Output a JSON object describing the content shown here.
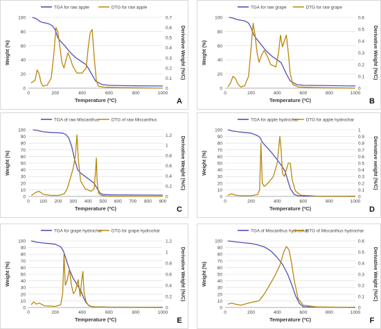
{
  "colors": {
    "tga": "#4f4fb5",
    "dtg": "#b8860b",
    "grid": "#d9d9d9",
    "text": "#444444"
  },
  "chart_data": [
    {
      "id": "A",
      "type": "line",
      "panel_label": "A",
      "xlabel": "Temperature (ºC)",
      "ylabel": "Weight (%)",
      "y2label": "Derivative Weight (%/C)",
      "xlim": [
        0,
        1000
      ],
      "xticks": [
        0,
        200,
        400,
        600,
        800,
        1000
      ],
      "ylim": [
        0,
        100
      ],
      "yticks": [
        0,
        20,
        40,
        60,
        80,
        100
      ],
      "y2lim": [
        0,
        0.7
      ],
      "y2ticks": [
        "0",
        "0.1",
        "0.2",
        "0.3",
        "0.4",
        "0.5",
        "0.6",
        "0.7"
      ],
      "series": [
        {
          "name": "TGA for raw apple",
          "axis": "left",
          "kind": "tga",
          "x": [
            30,
            60,
            80,
            100,
            130,
            150,
            180,
            200,
            220,
            240,
            270,
            300,
            330,
            360,
            400,
            430,
            450,
            470,
            500,
            550,
            600,
            700,
            800,
            1000
          ],
          "y": [
            100,
            98,
            95,
            93,
            92,
            91,
            88,
            82,
            71,
            66,
            60,
            53,
            47,
            42,
            37,
            33,
            27,
            20,
            10,
            5,
            4,
            3.5,
            3.2,
            3
          ]
        },
        {
          "name": "DTG for raw apple",
          "axis": "right",
          "kind": "dtg",
          "x": [
            20,
            50,
            65,
            80,
            95,
            110,
            140,
            170,
            190,
            205,
            220,
            235,
            250,
            265,
            280,
            295,
            310,
            330,
            360,
            400,
            430,
            445,
            460,
            475,
            490,
            505,
            520,
            560,
            700,
            1000
          ],
          "y": [
            0.05,
            0.08,
            0.18,
            0.14,
            0.05,
            0.02,
            0.03,
            0.1,
            0.35,
            0.6,
            0.55,
            0.4,
            0.25,
            0.2,
            0.28,
            0.35,
            0.3,
            0.22,
            0.15,
            0.15,
            0.2,
            0.4,
            0.55,
            0.58,
            0.3,
            0.08,
            0.02,
            0.01,
            0.005,
            0
          ]
        }
      ]
    },
    {
      "id": "B",
      "type": "line",
      "panel_label": "B",
      "xlabel": "Temperature (ºC)",
      "ylabel": "Weight (%)",
      "y2label": "Derivative Weight (%/C)",
      "xlim": [
        0,
        1000
      ],
      "xticks": [
        0,
        200,
        400,
        600,
        800,
        1000
      ],
      "ylim": [
        0,
        100
      ],
      "yticks": [
        0,
        20,
        40,
        60,
        80,
        100
      ],
      "y2lim": [
        0,
        0.6
      ],
      "y2ticks": [
        "0",
        "0.1",
        "0.2",
        "0.3",
        "0.4",
        "0.5",
        "0.6"
      ],
      "series": [
        {
          "name": "TGA for raw grape",
          "axis": "left",
          "kind": "tga",
          "x": [
            30,
            60,
            90,
            120,
            150,
            180,
            200,
            220,
            240,
            270,
            300,
            330,
            360,
            400,
            430,
            450,
            470,
            500,
            550,
            600,
            800,
            1000
          ],
          "y": [
            100,
            99,
            97,
            96,
            95,
            92,
            85,
            75,
            70,
            63,
            56,
            50,
            45,
            40,
            36,
            28,
            20,
            10,
            5,
            4,
            3.5,
            3
          ]
        },
        {
          "name": "DTG for raw grape",
          "axis": "right",
          "kind": "dtg",
          "x": [
            20,
            40,
            60,
            80,
            100,
            120,
            150,
            180,
            200,
            215,
            230,
            245,
            260,
            280,
            300,
            320,
            350,
            390,
            410,
            425,
            440,
            455,
            470,
            485,
            500,
            520,
            560,
            700,
            1000
          ],
          "y": [
            0.01,
            0.04,
            0.1,
            0.08,
            0.03,
            0.01,
            0.02,
            0.1,
            0.35,
            0.55,
            0.45,
            0.3,
            0.22,
            0.28,
            0.32,
            0.28,
            0.2,
            0.18,
            0.3,
            0.45,
            0.35,
            0.4,
            0.45,
            0.3,
            0.12,
            0.03,
            0.01,
            0.005,
            0
          ]
        }
      ]
    },
    {
      "id": "C",
      "type": "line",
      "panel_label": "C",
      "xlabel": "Temperature (ºC)",
      "ylabel": "Weight (%)",
      "y2label": "Derivative Weight (%/C)",
      "xlim": [
        0,
        900
      ],
      "xticks": [
        0,
        100,
        200,
        300,
        400,
        500,
        600,
        700,
        800,
        900
      ],
      "ylim": [
        0,
        100
      ],
      "yticks": [
        0,
        10,
        20,
        30,
        40,
        50,
        60,
        70,
        80,
        90,
        100
      ],
      "y2lim": [
        0,
        1.3
      ],
      "y2ticks": [
        "0",
        "0.2",
        "0.4",
        "0.6",
        "0.8",
        "1",
        "1.2"
      ],
      "series": [
        {
          "name": "TGA of raw Miscanthus",
          "axis": "left",
          "kind": "tga",
          "x": [
            30,
            60,
            100,
            150,
            200,
            230,
            250,
            270,
            290,
            310,
            330,
            350,
            380,
            410,
            440,
            460,
            480,
            500,
            550,
            700,
            900
          ],
          "y": [
            100,
            99,
            97,
            96,
            95.5,
            95,
            93,
            88,
            75,
            55,
            40,
            35,
            30,
            25,
            20,
            12,
            5,
            3,
            2.5,
            2.2,
            2
          ]
        },
        {
          "name": "DTG of raw Miscanthus",
          "axis": "right",
          "kind": "dtg",
          "x": [
            20,
            50,
            70,
            100,
            150,
            200,
            240,
            260,
            280,
            300,
            315,
            325,
            335,
            350,
            380,
            420,
            440,
            450,
            455,
            460,
            470,
            490,
            520,
            600,
            900
          ],
          "y": [
            0.02,
            0.08,
            0.1,
            0.04,
            0.02,
            0.02,
            0.05,
            0.15,
            0.35,
            0.55,
            0.8,
            1.2,
            0.7,
            0.3,
            0.15,
            0.1,
            0.15,
            0.5,
            0.75,
            0.3,
            0.06,
            0.02,
            0.01,
            0.005,
            0
          ]
        }
      ]
    },
    {
      "id": "D",
      "type": "line",
      "panel_label": "D",
      "xlabel": "Temperature (ºC)",
      "ylabel": "Weight (%)",
      "y2label": "Derivative weight (%/C)",
      "xlim": [
        0,
        1000
      ],
      "xticks": [
        0,
        200,
        400,
        600,
        800,
        1000
      ],
      "ylim": [
        0,
        100
      ],
      "yticks": [
        0,
        10,
        20,
        30,
        40,
        50,
        60,
        70,
        80,
        90,
        100
      ],
      "y2lim": [
        0,
        1
      ],
      "y2ticks": [
        "0",
        "0.1",
        "0.2",
        "0.3",
        "0.4",
        "0.5",
        "0.6",
        "0.7",
        "0.8",
        "0.9",
        "1"
      ],
      "series": [
        {
          "name": "TGA for apple hydrochar",
          "axis": "left",
          "kind": "tga",
          "x": [
            20,
            60,
            100,
            150,
            200,
            250,
            270,
            280,
            300,
            330,
            360,
            400,
            430,
            460,
            480,
            500,
            530,
            560,
            600,
            800,
            1000
          ],
          "y": [
            100,
            98,
            97,
            96,
            95,
            91,
            88,
            83,
            78,
            72,
            65,
            55,
            47,
            38,
            25,
            12,
            3,
            1,
            0.5,
            0.3,
            0.3
          ]
        },
        {
          "name": "DTG for apple hydrochar",
          "axis": "right",
          "kind": "dtg",
          "x": [
            20,
            50,
            80,
            120,
            200,
            250,
            265,
            275,
            285,
            300,
            330,
            370,
            400,
            420,
            430,
            440,
            455,
            470,
            485,
            500,
            515,
            540,
            580,
            700,
            1000
          ],
          "y": [
            0.02,
            0.04,
            0.02,
            0.01,
            0.01,
            0.03,
            0.1,
            0.8,
            0.2,
            0.15,
            0.2,
            0.3,
            0.5,
            0.9,
            0.7,
            0.35,
            0.3,
            0.4,
            0.5,
            0.5,
            0.25,
            0.08,
            0.02,
            0.005,
            0
          ]
        }
      ]
    },
    {
      "id": "E",
      "type": "line",
      "panel_label": "E",
      "xlabel": "Temperature (ºC)",
      "ylabel": "Weight (%)",
      "y2label": "Derivative Weight (%/C)",
      "xlim": [
        0,
        1000
      ],
      "xticks": [
        0,
        200,
        400,
        600,
        800,
        1000
      ],
      "ylim": [
        0,
        100
      ],
      "yticks": [
        0,
        10,
        20,
        30,
        40,
        50,
        60,
        70,
        80,
        90,
        100
      ],
      "y2lim": [
        0,
        1.2
      ],
      "y2ticks": [
        "0",
        "0.2",
        "0.4",
        "0.6",
        "0.8",
        "1",
        "1.2"
      ],
      "series": [
        {
          "name": "TGA for grape hydrochar",
          "axis": "left",
          "kind": "tga",
          "x": [
            20,
            60,
            100,
            150,
            200,
            240,
            260,
            275,
            290,
            310,
            330,
            360,
            390,
            410,
            430,
            450,
            470,
            500,
            600,
            800,
            1000
          ],
          "y": [
            100,
            98,
            97,
            96,
            95,
            91,
            85,
            76,
            66,
            55,
            45,
            35,
            25,
            15,
            7,
            3,
            1.5,
            0.8,
            0.5,
            0.3,
            0.3
          ]
        },
        {
          "name": "DTG for grape hydrochar",
          "axis": "right",
          "kind": "dtg",
          "x": [
            20,
            40,
            60,
            80,
            120,
            200,
            240,
            255,
            265,
            275,
            290,
            305,
            320,
            335,
            350,
            370,
            385,
            395,
            405,
            415,
            430,
            450,
            480,
            600,
            1000
          ],
          "y": [
            0.05,
            0.1,
            0.06,
            0.08,
            0.03,
            0.02,
            0.05,
            0.25,
            0.95,
            0.4,
            0.5,
            0.7,
            0.4,
            0.25,
            0.3,
            0.5,
            0.2,
            0.45,
            0.65,
            0.25,
            0.1,
            0.03,
            0.01,
            0.005,
            0
          ]
        }
      ]
    },
    {
      "id": "F",
      "type": "line",
      "panel_label": "F",
      "xlabel": "Temperature (ºC)",
      "ylabel": "Weight (%)",
      "y2label": "Derivative Weight (%/C)",
      "xlim": [
        0,
        1000
      ],
      "xticks": [
        0,
        200,
        400,
        600,
        800,
        1000
      ],
      "ylim": [
        0,
        100
      ],
      "yticks": [
        0,
        10,
        20,
        30,
        40,
        50,
        60,
        70,
        80,
        90,
        100
      ],
      "y2lim": [
        0,
        0.6
      ],
      "y2ticks": [
        "0",
        "0.1",
        "0.2",
        "0.3",
        "0.4",
        "0.5",
        "0.6"
      ],
      "series": [
        {
          "name": "TGA of Miscanthus hydrochar",
          "axis": "left",
          "kind": "tga",
          "x": [
            20,
            60,
            100,
            150,
            200,
            250,
            300,
            350,
            400,
            440,
            480,
            510,
            540,
            570,
            600,
            700,
            1000
          ],
          "y": [
            100,
            99,
            98,
            97,
            96,
            94,
            91,
            85,
            75,
            65,
            50,
            35,
            18,
            6,
            1,
            0.5,
            0.3
          ]
        },
        {
          "name": "DTG of Miscanthus hydrochar",
          "axis": "right",
          "kind": "dtg",
          "x": [
            20,
            50,
            80,
            120,
            180,
            220,
            260,
            300,
            340,
            380,
            420,
            450,
            470,
            490,
            510,
            530,
            560,
            600,
            700,
            1000
          ],
          "y": [
            0.03,
            0.04,
            0.03,
            0.02,
            0.04,
            0.05,
            0.06,
            0.12,
            0.2,
            0.28,
            0.38,
            0.5,
            0.55,
            0.52,
            0.4,
            0.25,
            0.08,
            0.02,
            0.005,
            0
          ]
        }
      ]
    }
  ]
}
